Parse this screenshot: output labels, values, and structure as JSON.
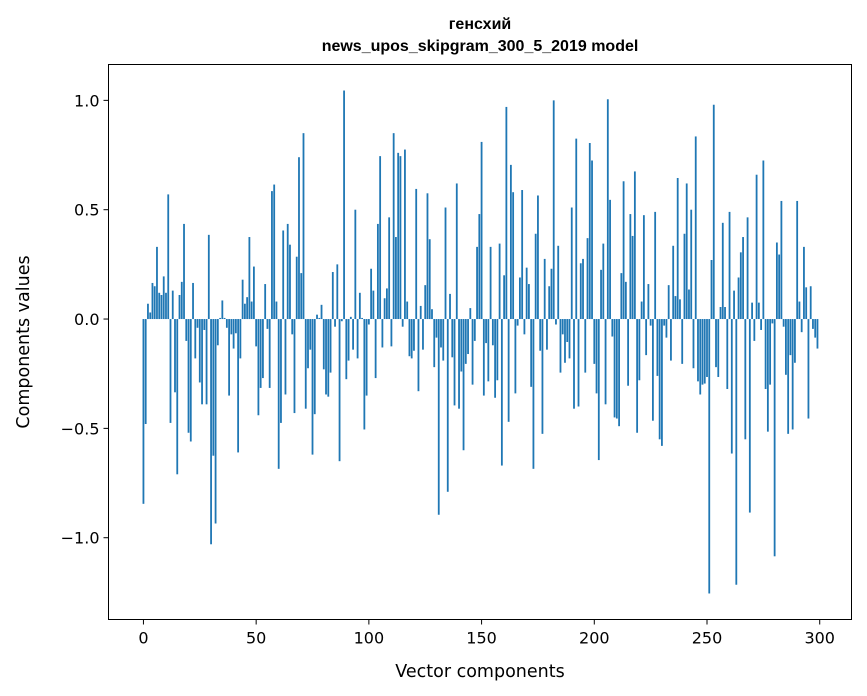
{
  "chart_data": {
    "type": "bar",
    "title_lines": [
      "генсхий",
      "news_upos_skipgram_300_5_2019 model"
    ],
    "xlabel": "Vector components",
    "ylabel": "Components values",
    "xlim": [
      -15.5,
      314.1
    ],
    "ylim": [
      -1.374,
      1.164
    ],
    "xticks": [
      0,
      50,
      100,
      150,
      200,
      250,
      300
    ],
    "xtick_labels": [
      "0",
      "50",
      "100",
      "150",
      "200",
      "250",
      "300"
    ],
    "yticks": [
      -1.0,
      -0.5,
      0.0,
      0.5,
      1.0
    ],
    "ytick_labels": [
      "−1.0",
      "−0.5",
      "0.0",
      "0.5",
      "1.0"
    ],
    "grid": false,
    "bar_color": "#1f77b4",
    "bar_width": 0.8,
    "values": [
      -0.845,
      -0.48,
      0.07,
      0.03,
      0.165,
      0.15,
      0.33,
      0.12,
      0.11,
      0.195,
      0.12,
      0.57,
      -0.475,
      0.13,
      -0.335,
      -0.71,
      0.11,
      0.17,
      0.435,
      -0.1,
      -0.52,
      -0.56,
      0.165,
      -0.18,
      -0.04,
      -0.29,
      -0.39,
      -0.05,
      -0.39,
      0.385,
      -1.03,
      -0.625,
      -0.935,
      -0.12,
      0.005,
      0.085,
      0.005,
      -0.04,
      -0.35,
      -0.07,
      -0.135,
      -0.065,
      -0.61,
      -0.18,
      0.18,
      0.07,
      0.1,
      0.375,
      0.08,
      0.24,
      -0.125,
      -0.44,
      -0.315,
      -0.27,
      0.16,
      -0.045,
      -0.315,
      0.585,
      0.615,
      0.08,
      -0.685,
      -0.475,
      0.405,
      -0.345,
      0.435,
      0.34,
      -0.07,
      -0.43,
      0.285,
      0.74,
      0.21,
      0.85,
      -0.41,
      -0.225,
      -0.14,
      -0.62,
      -0.435,
      0.02,
      0.005,
      0.065,
      -0.23,
      -0.345,
      -0.355,
      -0.245,
      0.215,
      -0.035,
      0.25,
      -0.65,
      -0.01,
      1.045,
      -0.275,
      -0.19,
      0.01,
      -0.14,
      0.5,
      -0.18,
      0.12,
      0.005,
      -0.505,
      -0.35,
      -0.025,
      0.23,
      0.13,
      -0.27,
      0.435,
      0.745,
      -0.13,
      0.095,
      0.14,
      0.465,
      -0.125,
      0.85,
      0.375,
      0.76,
      0.745,
      -0.035,
      0.775,
      0.08,
      -0.17,
      -0.18,
      -0.145,
      0.595,
      -0.33,
      0.06,
      -0.14,
      0.155,
      0.575,
      0.365,
      0.045,
      -0.22,
      -0.085,
      -0.895,
      -0.13,
      -0.19,
      0.51,
      -0.79,
      0.115,
      -0.175,
      -0.395,
      0.62,
      -0.41,
      -0.24,
      -0.6,
      -0.205,
      -0.16,
      0.05,
      -0.3,
      -0.1,
      0.33,
      0.48,
      0.81,
      -0.35,
      -0.11,
      -0.285,
      0.33,
      -0.12,
      -0.36,
      -0.28,
      0.345,
      -0.67,
      0.2,
      0.97,
      -0.47,
      0.705,
      0.58,
      -0.34,
      -0.03,
      0.19,
      0.59,
      -0.07,
      0.235,
      0.16,
      -0.31,
      -0.685,
      0.39,
      0.565,
      -0.145,
      -0.525,
      0.275,
      -0.14,
      0.15,
      0.23,
      1.0,
      -0.025,
      0.335,
      -0.245,
      -0.07,
      -0.2,
      -0.105,
      -0.18,
      0.51,
      -0.41,
      0.825,
      -0.4,
      0.255,
      0.275,
      -0.245,
      0.37,
      0.805,
      0.725,
      -0.205,
      -0.34,
      -0.645,
      0.225,
      0.345,
      -0.39,
      1.005,
      0.545,
      -0.08,
      -0.45,
      -0.455,
      -0.49,
      0.21,
      0.63,
      0.17,
      -0.305,
      0.48,
      0.38,
      0.675,
      -0.52,
      -0.28,
      0.08,
      0.475,
      -0.165,
      0.16,
      -0.03,
      -0.465,
      0.49,
      -0.26,
      -0.55,
      -0.58,
      -0.03,
      -0.085,
      0.155,
      -0.19,
      0.335,
      0.105,
      0.645,
      0.09,
      -0.205,
      0.39,
      0.62,
      0.135,
      0.5,
      -0.225,
      0.835,
      -0.285,
      -0.345,
      -0.3,
      -0.295,
      -0.265,
      -1.255,
      0.27,
      0.98,
      -0.22,
      -0.265,
      0.055,
      0.44,
      0.055,
      -0.32,
      0.49,
      -0.615,
      0.13,
      -1.215,
      0.19,
      0.305,
      0.375,
      -0.55,
      0.465,
      -0.885,
      0.075,
      -0.1,
      0.66,
      0.075,
      -0.05,
      0.725,
      -0.32,
      -0.515,
      -0.3,
      -0.02,
      -1.085,
      0.35,
      0.295,
      0.54,
      -0.035,
      -0.255,
      -0.525,
      -0.165,
      -0.505,
      -0.2,
      0.54,
      0.08,
      -0.06,
      0.33,
      0.145,
      -0.455,
      0.15,
      -0.045,
      -0.085,
      -0.135
    ]
  }
}
